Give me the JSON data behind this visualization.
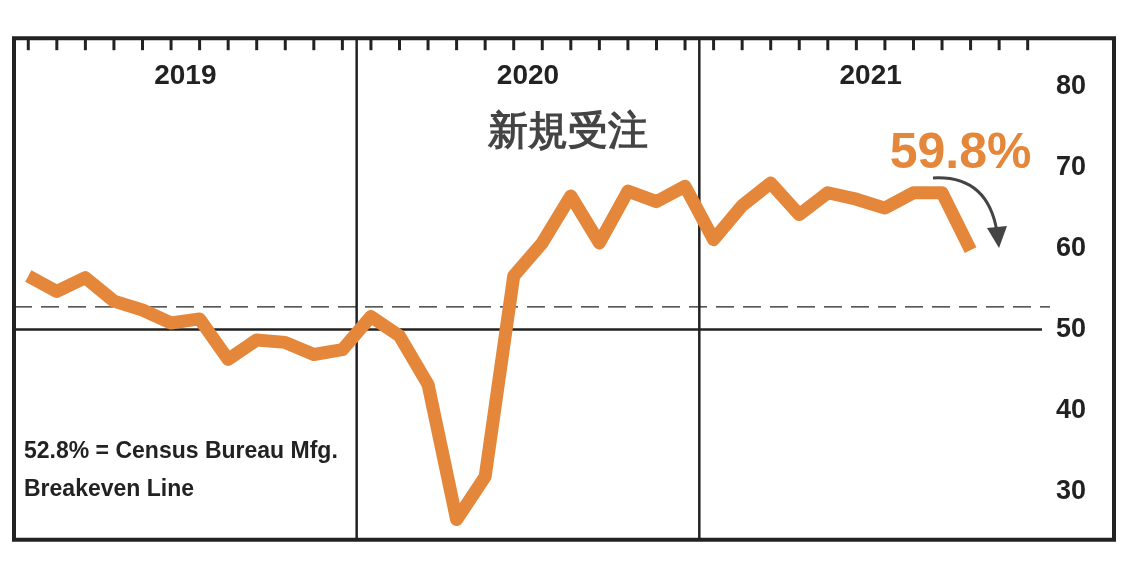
{
  "chart_data": {
    "type": "line",
    "title": "新規受注",
    "categories": [
      null,
      null,
      null,
      null,
      null,
      null,
      null,
      null,
      null,
      null,
      null,
      null,
      null,
      null,
      null,
      null,
      null,
      null,
      null,
      null,
      null,
      null,
      null,
      null,
      null,
      null,
      null,
      null,
      null,
      null,
      null,
      null,
      null,
      null,
      null,
      null
    ],
    "series": [
      {
        "color": "#e5873b",
        "values": [
          56.6,
          54.7,
          56.4,
          53.5,
          52.4,
          50.8,
          51.3,
          46.3,
          48.7,
          48.4,
          46.9,
          47.5,
          51.6,
          49.2,
          43.2,
          26.5,
          31.8,
          56.6,
          60.7,
          66.5,
          60.7,
          67.1,
          65.8,
          67.7,
          61.1,
          65.3,
          68.1,
          64.2,
          66.9,
          66.1,
          65.0,
          66.9,
          66.9,
          59.8,
          null,
          null
        ],
        "value_labels": [
          null,
          null,
          null,
          null,
          null,
          null,
          null,
          null,
          null,
          null,
          null,
          null,
          null,
          null,
          null,
          null,
          null,
          null,
          null,
          null,
          null,
          null,
          null,
          null,
          null,
          null,
          null,
          null,
          null,
          null,
          null,
          null,
          null,
          "59.8%",
          null,
          null
        ]
      }
    ],
    "ylim": [
      24,
      86
    ],
    "yticks": [
      30,
      40,
      50,
      60,
      70,
      80
    ],
    "ref_lines": [
      {
        "axis": "y",
        "value": 52.8,
        "line_style": "dashed",
        "label": "52.8% = Census Bureau Mfg. Breakeven Line"
      },
      {
        "axis": "y",
        "value": 50,
        "line_style": "solid"
      }
    ],
    "annotations": [
      "2019",
      "2020",
      "2021"
    ],
    "grid": false,
    "legend": false,
    "marker": "none",
    "line_style": "solid"
  }
}
